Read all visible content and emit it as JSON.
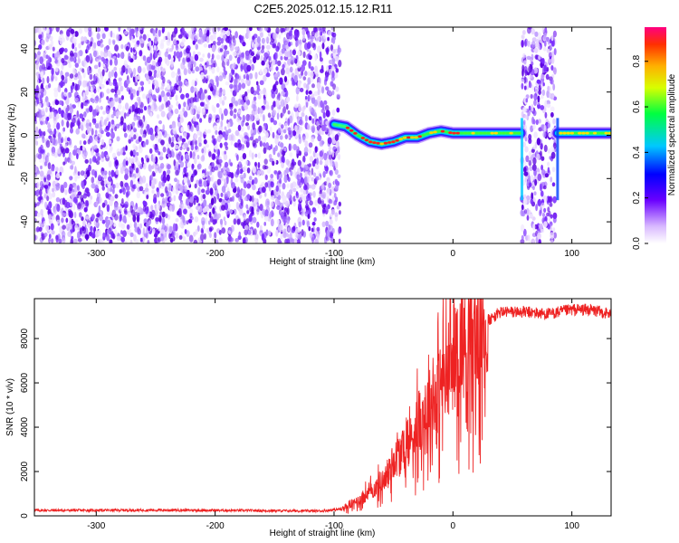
{
  "title": "C2E5.2025.012.15.12.R11",
  "chart_data": [
    {
      "type": "heatmap",
      "xlabel": "Height of straight line (km)",
      "ylabel": "Frequency (Hz)",
      "xlim": [
        -352,
        133
      ],
      "ylim": [
        -50,
        50
      ],
      "xticks": [
        -300,
        -200,
        -100,
        0,
        100
      ],
      "yticks": [
        -40,
        -20,
        0,
        20,
        40
      ],
      "noise_regions": [
        [
          -352,
          -95
        ],
        [
          58,
          86
        ]
      ],
      "signal_trace": [
        {
          "x": -100,
          "y": 5
        },
        {
          "x": -90,
          "y": 4
        },
        {
          "x": -80,
          "y": 0
        },
        {
          "x": -70,
          "y": -3
        },
        {
          "x": -60,
          "y": -4
        },
        {
          "x": -50,
          "y": -3
        },
        {
          "x": -40,
          "y": -1
        },
        {
          "x": -30,
          "y": -1
        },
        {
          "x": -20,
          "y": 1
        },
        {
          "x": -10,
          "y": 2
        },
        {
          "x": 0,
          "y": 1
        },
        {
          "x": 20,
          "y": 1
        },
        {
          "x": 40,
          "y": 1
        },
        {
          "x": 57,
          "y": 1
        },
        {
          "x": 88,
          "y": 1
        },
        {
          "x": 110,
          "y": 1
        },
        {
          "x": 133,
          "y": 1
        }
      ],
      "colorbar": {
        "label": "Normalized spectral amplitude",
        "range": [
          0,
          0.95
        ],
        "ticks": [
          0.0,
          0.2,
          0.4,
          0.6,
          0.8
        ],
        "tick_labels": [
          "0.0",
          "0.2",
          "0.4",
          "0.6",
          "0.8"
        ]
      }
    },
    {
      "type": "line",
      "xlabel": "Height of straight line (km)",
      "ylabel": "SNR (10 * v/v)",
      "xlim": [
        -352,
        133
      ],
      "ylim": [
        0,
        9800
      ],
      "xticks": [
        -300,
        -200,
        -100,
        0,
        100
      ],
      "yticks": [
        0,
        2000,
        4000,
        6000,
        8000
      ],
      "series": [
        {
          "color": "#ee2222",
          "points": [
            [
              -352,
              250
            ],
            [
              -300,
              250
            ],
            [
              -250,
              260
            ],
            [
              -200,
              250
            ],
            [
              -150,
              230
            ],
            [
              -110,
              220
            ],
            [
              -95,
              300
            ],
            [
              -85,
              500
            ],
            [
              -75,
              900
            ],
            [
              -65,
              1300
            ],
            [
              -55,
              1900
            ],
            [
              -50,
              2600
            ],
            [
              -45,
              2800
            ],
            [
              -40,
              3100
            ],
            [
              -35,
              3600
            ],
            [
              -30,
              4300
            ],
            [
              -25,
              4700
            ],
            [
              -20,
              5200
            ],
            [
              -15,
              5600
            ],
            [
              -10,
              6100
            ],
            [
              -5,
              6800
            ],
            [
              0,
              7200
            ],
            [
              5,
              7800
            ],
            [
              10,
              8200
            ],
            [
              15,
              8400
            ],
            [
              20,
              8500
            ],
            [
              30,
              8800
            ],
            [
              40,
              9200
            ],
            [
              60,
              9200
            ],
            [
              80,
              9100
            ],
            [
              100,
              9300
            ],
            [
              115,
              9300
            ],
            [
              133,
              9100
            ]
          ]
        }
      ]
    }
  ]
}
